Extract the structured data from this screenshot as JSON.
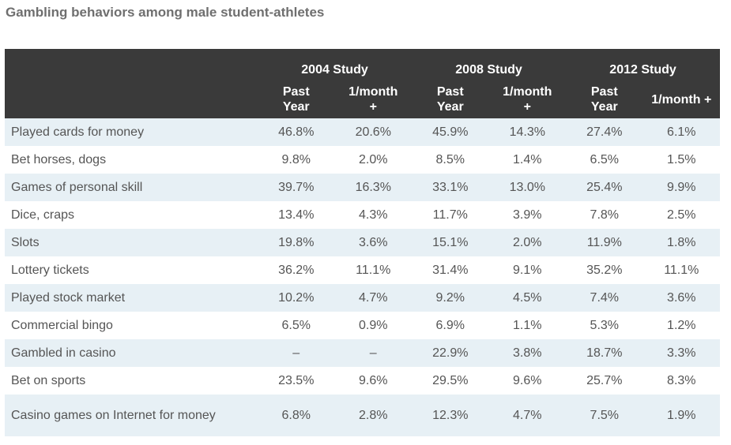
{
  "title": "Gambling behaviors among male student-athletes",
  "chart_data": {
    "type": "table",
    "title": "Gambling behaviors among male student-athletes",
    "studies": [
      "2004 Study",
      "2008 Study",
      "2012 Study"
    ],
    "subheaders": [
      "Past Year",
      "1/month +"
    ],
    "rows": [
      {
        "label": "Played cards for money",
        "values": [
          "46.8%",
          "20.6%",
          "45.9%",
          "14.3%",
          "27.4%",
          "6.1%"
        ]
      },
      {
        "label": "Bet horses, dogs",
        "values": [
          "9.8%",
          "2.0%",
          "8.5%",
          "1.4%",
          "6.5%",
          "1.5%"
        ]
      },
      {
        "label": "Games of personal skill",
        "values": [
          "39.7%",
          "16.3%",
          "33.1%",
          "13.0%",
          "25.4%",
          "9.9%"
        ]
      },
      {
        "label": "Dice, craps",
        "values": [
          "13.4%",
          "4.3%",
          "11.7%",
          "3.9%",
          "7.8%",
          "2.5%"
        ]
      },
      {
        "label": "Slots",
        "values": [
          "19.8%",
          "3.6%",
          "15.1%",
          "2.0%",
          "11.9%",
          "1.8%"
        ]
      },
      {
        "label": "Lottery tickets",
        "values": [
          "36.2%",
          "11.1%",
          "31.4%",
          "9.1%",
          "35.2%",
          "11.1%"
        ]
      },
      {
        "label": "Played stock market",
        "values": [
          "10.2%",
          "4.7%",
          "9.2%",
          "4.5%",
          "7.4%",
          "3.6%"
        ]
      },
      {
        "label": "Commercial bingo",
        "values": [
          "6.5%",
          "0.9%",
          "6.9%",
          "1.1%",
          "5.3%",
          "1.2%"
        ]
      },
      {
        "label": "Gambled in casino",
        "values": [
          "–",
          "–",
          "22.9%",
          "3.8%",
          "18.7%",
          "3.3%"
        ]
      },
      {
        "label": "Bet on sports",
        "values": [
          "23.5%",
          "9.6%",
          "29.5%",
          "9.6%",
          "25.7%",
          "8.3%"
        ]
      },
      {
        "label": "Casino games on Internet for money",
        "values": [
          "6.8%",
          "2.8%",
          "12.3%",
          "4.7%",
          "7.5%",
          "1.9%"
        ]
      }
    ]
  }
}
